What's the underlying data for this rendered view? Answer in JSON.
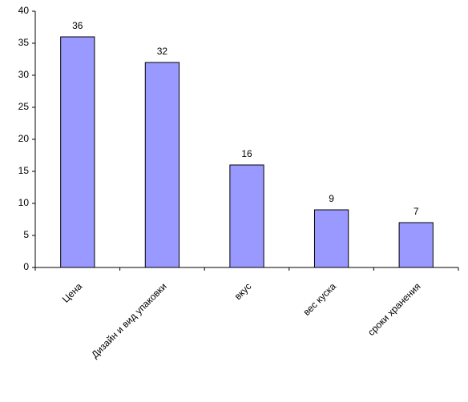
{
  "chart_data": {
    "type": "bar",
    "categories": [
      "Цена",
      "Дизайн и вид упаковки",
      "вкус",
      "вес куска",
      "сроки хранения"
    ],
    "values": [
      36,
      32,
      16,
      9,
      7
    ],
    "color": "#9999ff",
    "ylim": [
      0,
      40
    ],
    "yticks": [
      0,
      5,
      10,
      15,
      20,
      25,
      30,
      35,
      40
    ],
    "grid": false
  }
}
